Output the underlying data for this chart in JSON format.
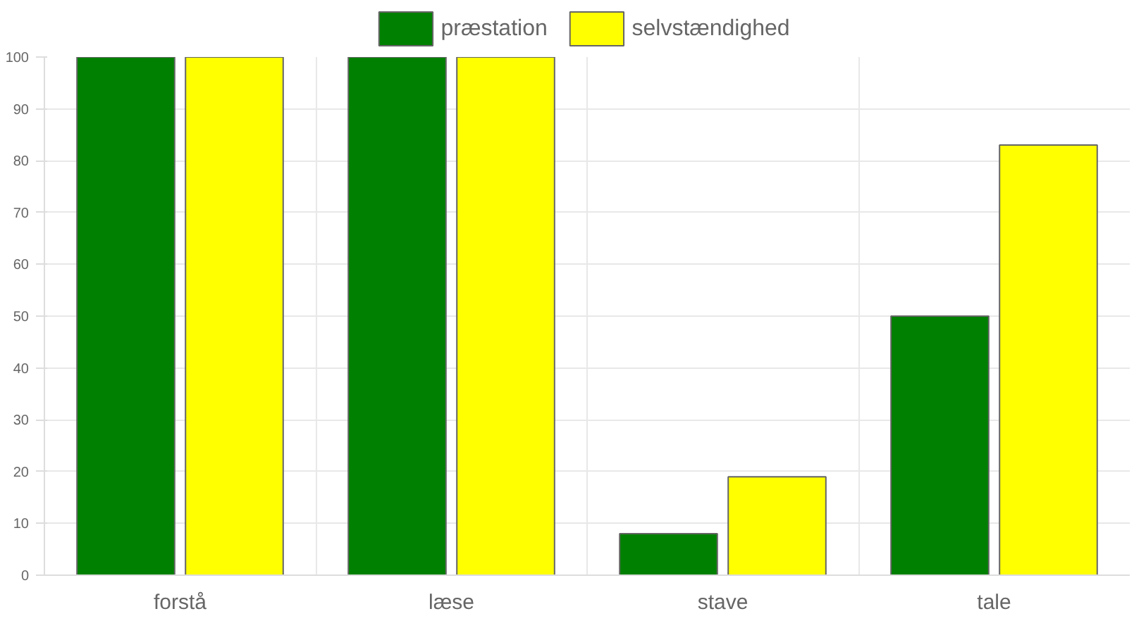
{
  "chart_data": {
    "type": "bar",
    "categories": [
      "forstå",
      "læse",
      "stave",
      "tale"
    ],
    "series": [
      {
        "name": "præstation",
        "color": "#008000",
        "values": [
          100,
          100,
          8,
          50
        ]
      },
      {
        "name": "selvstændighed",
        "color": "#ffff00",
        "values": [
          100,
          100,
          19,
          83
        ]
      }
    ],
    "ylim": [
      0,
      100
    ],
    "yticks": [
      0,
      10,
      20,
      30,
      40,
      50,
      60,
      70,
      80,
      90,
      100
    ],
    "grid": true,
    "legend": "top"
  }
}
